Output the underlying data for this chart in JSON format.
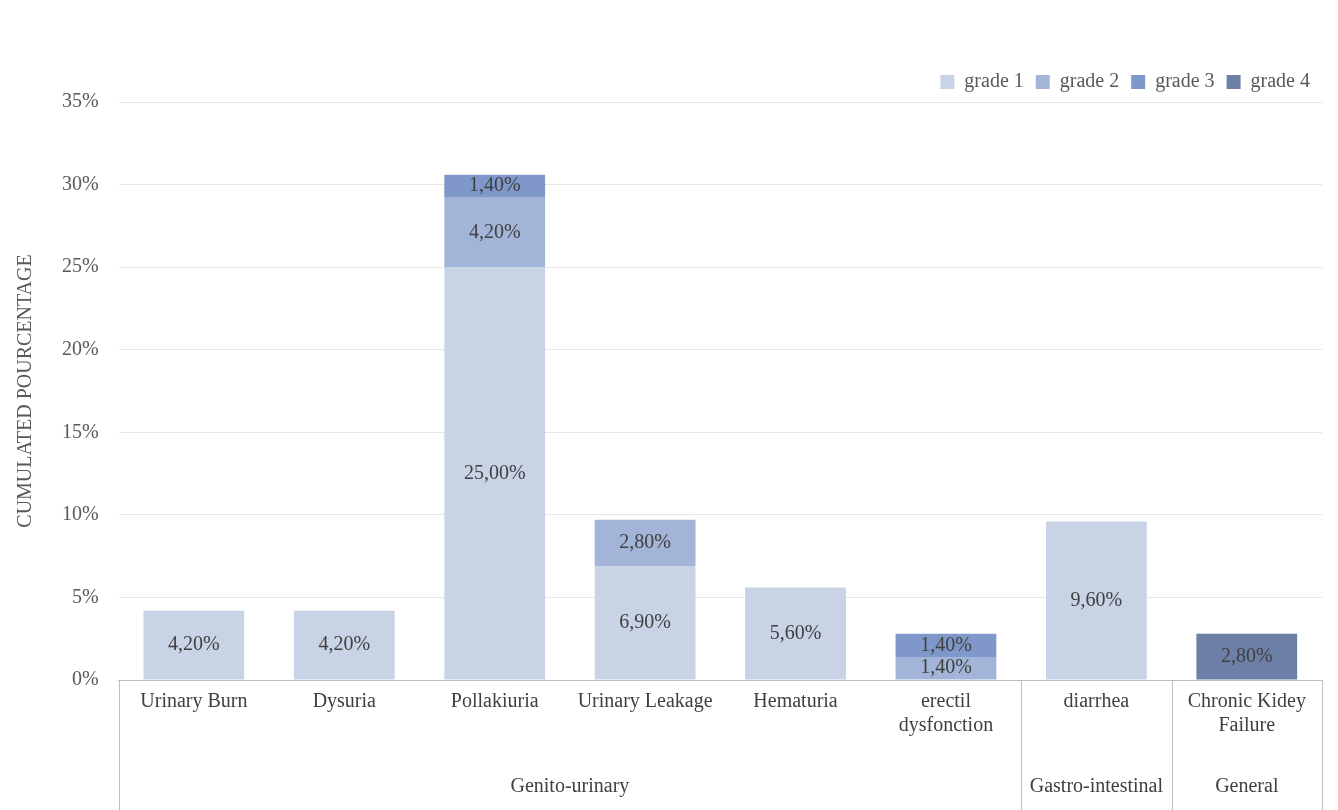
{
  "chart_data": {
    "type": "bar",
    "stacked": true,
    "ylabel": "CUMULATED POURCENTAGE",
    "categories": [
      "Urinary Burn",
      "Dysuria",
      "Pollakiuria",
      "Urinary Leakage",
      "Hematuria",
      "erectil dysfonction",
      "diarrhea",
      "Chronic Kidey Failure"
    ],
    "series": [
      {
        "name": "grade 1",
        "color": "#c9d3e6",
        "values": [
          4.2,
          4.2,
          25,
          6.9,
          5.6,
          null,
          9.6,
          null
        ],
        "value_labels": [
          "4,20%",
          "4,20%",
          "25,00%",
          "6,90%",
          "5,60%",
          null,
          "9,60%",
          null
        ]
      },
      {
        "name": "grade 2",
        "color": "#a3b4d9",
        "values": [
          null,
          null,
          4.2,
          2.8,
          null,
          1.4,
          null,
          null
        ],
        "value_labels": [
          null,
          null,
          "4,20%",
          "2,80%",
          null,
          "1,40%",
          null,
          null
        ]
      },
      {
        "name": "grade 3",
        "color": "#7f98c9",
        "values": [
          null,
          null,
          1.4,
          null,
          null,
          1.4,
          null,
          null
        ],
        "value_labels": [
          null,
          null,
          "1,40%",
          null,
          null,
          "1,40%",
          null,
          null
        ]
      },
      {
        "name": "grade 4",
        "color": "#6c7fa6",
        "values": [
          null,
          null,
          null,
          null,
          null,
          null,
          null,
          2.8
        ],
        "value_labels": [
          null,
          null,
          null,
          null,
          null,
          null,
          null,
          "2,80%"
        ]
      }
    ],
    "ylim": [
      0,
      35
    ],
    "yticks": [
      {
        "value": 0,
        "label": "0%"
      },
      {
        "value": 5,
        "label": "5%"
      },
      {
        "value": 10,
        "label": "10%"
      },
      {
        "value": 15,
        "label": "15%"
      },
      {
        "value": 20,
        "label": "20%"
      },
      {
        "value": 25,
        "label": "25%"
      },
      {
        "value": 30,
        "label": "30%"
      },
      {
        "value": 35,
        "label": "35%"
      }
    ],
    "grid": "y",
    "legend": "top right",
    "annotations": [
      "Genito-urinary",
      "Gastro-intestinal",
      "General"
    ]
  }
}
